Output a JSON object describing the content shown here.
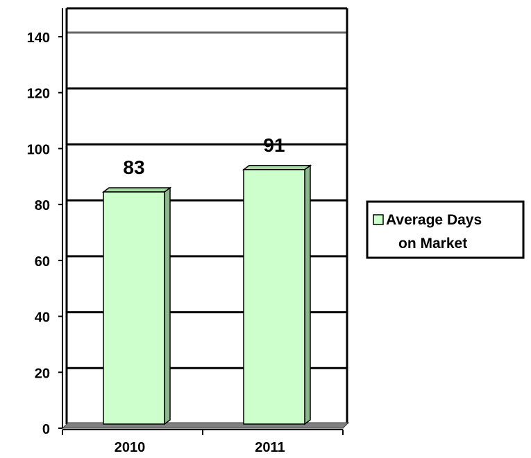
{
  "chart_data": {
    "type": "bar",
    "categories": [
      "2010",
      "2011"
    ],
    "series": [
      {
        "name": "Average Days on Market",
        "values": [
          83,
          91
        ]
      }
    ],
    "data_labels": [
      "83",
      "91"
    ],
    "ylim": [
      0,
      140
    ],
    "yticks": [
      0,
      20,
      40,
      60,
      80,
      100,
      120,
      140
    ],
    "ytick_labels": [
      "0",
      "20",
      "40",
      "60",
      "80",
      "100",
      "120",
      "140"
    ],
    "grid": true,
    "legend": {
      "position": "right",
      "lines": [
        "Average Days",
        "on Market"
      ]
    },
    "bar_style": "3d",
    "colors": {
      "bar_fill": "#ccffcc",
      "bar_side": "#8db88d",
      "bar_top": "#a8d8a8",
      "grid": "#000000",
      "floor": "#808080"
    }
  }
}
